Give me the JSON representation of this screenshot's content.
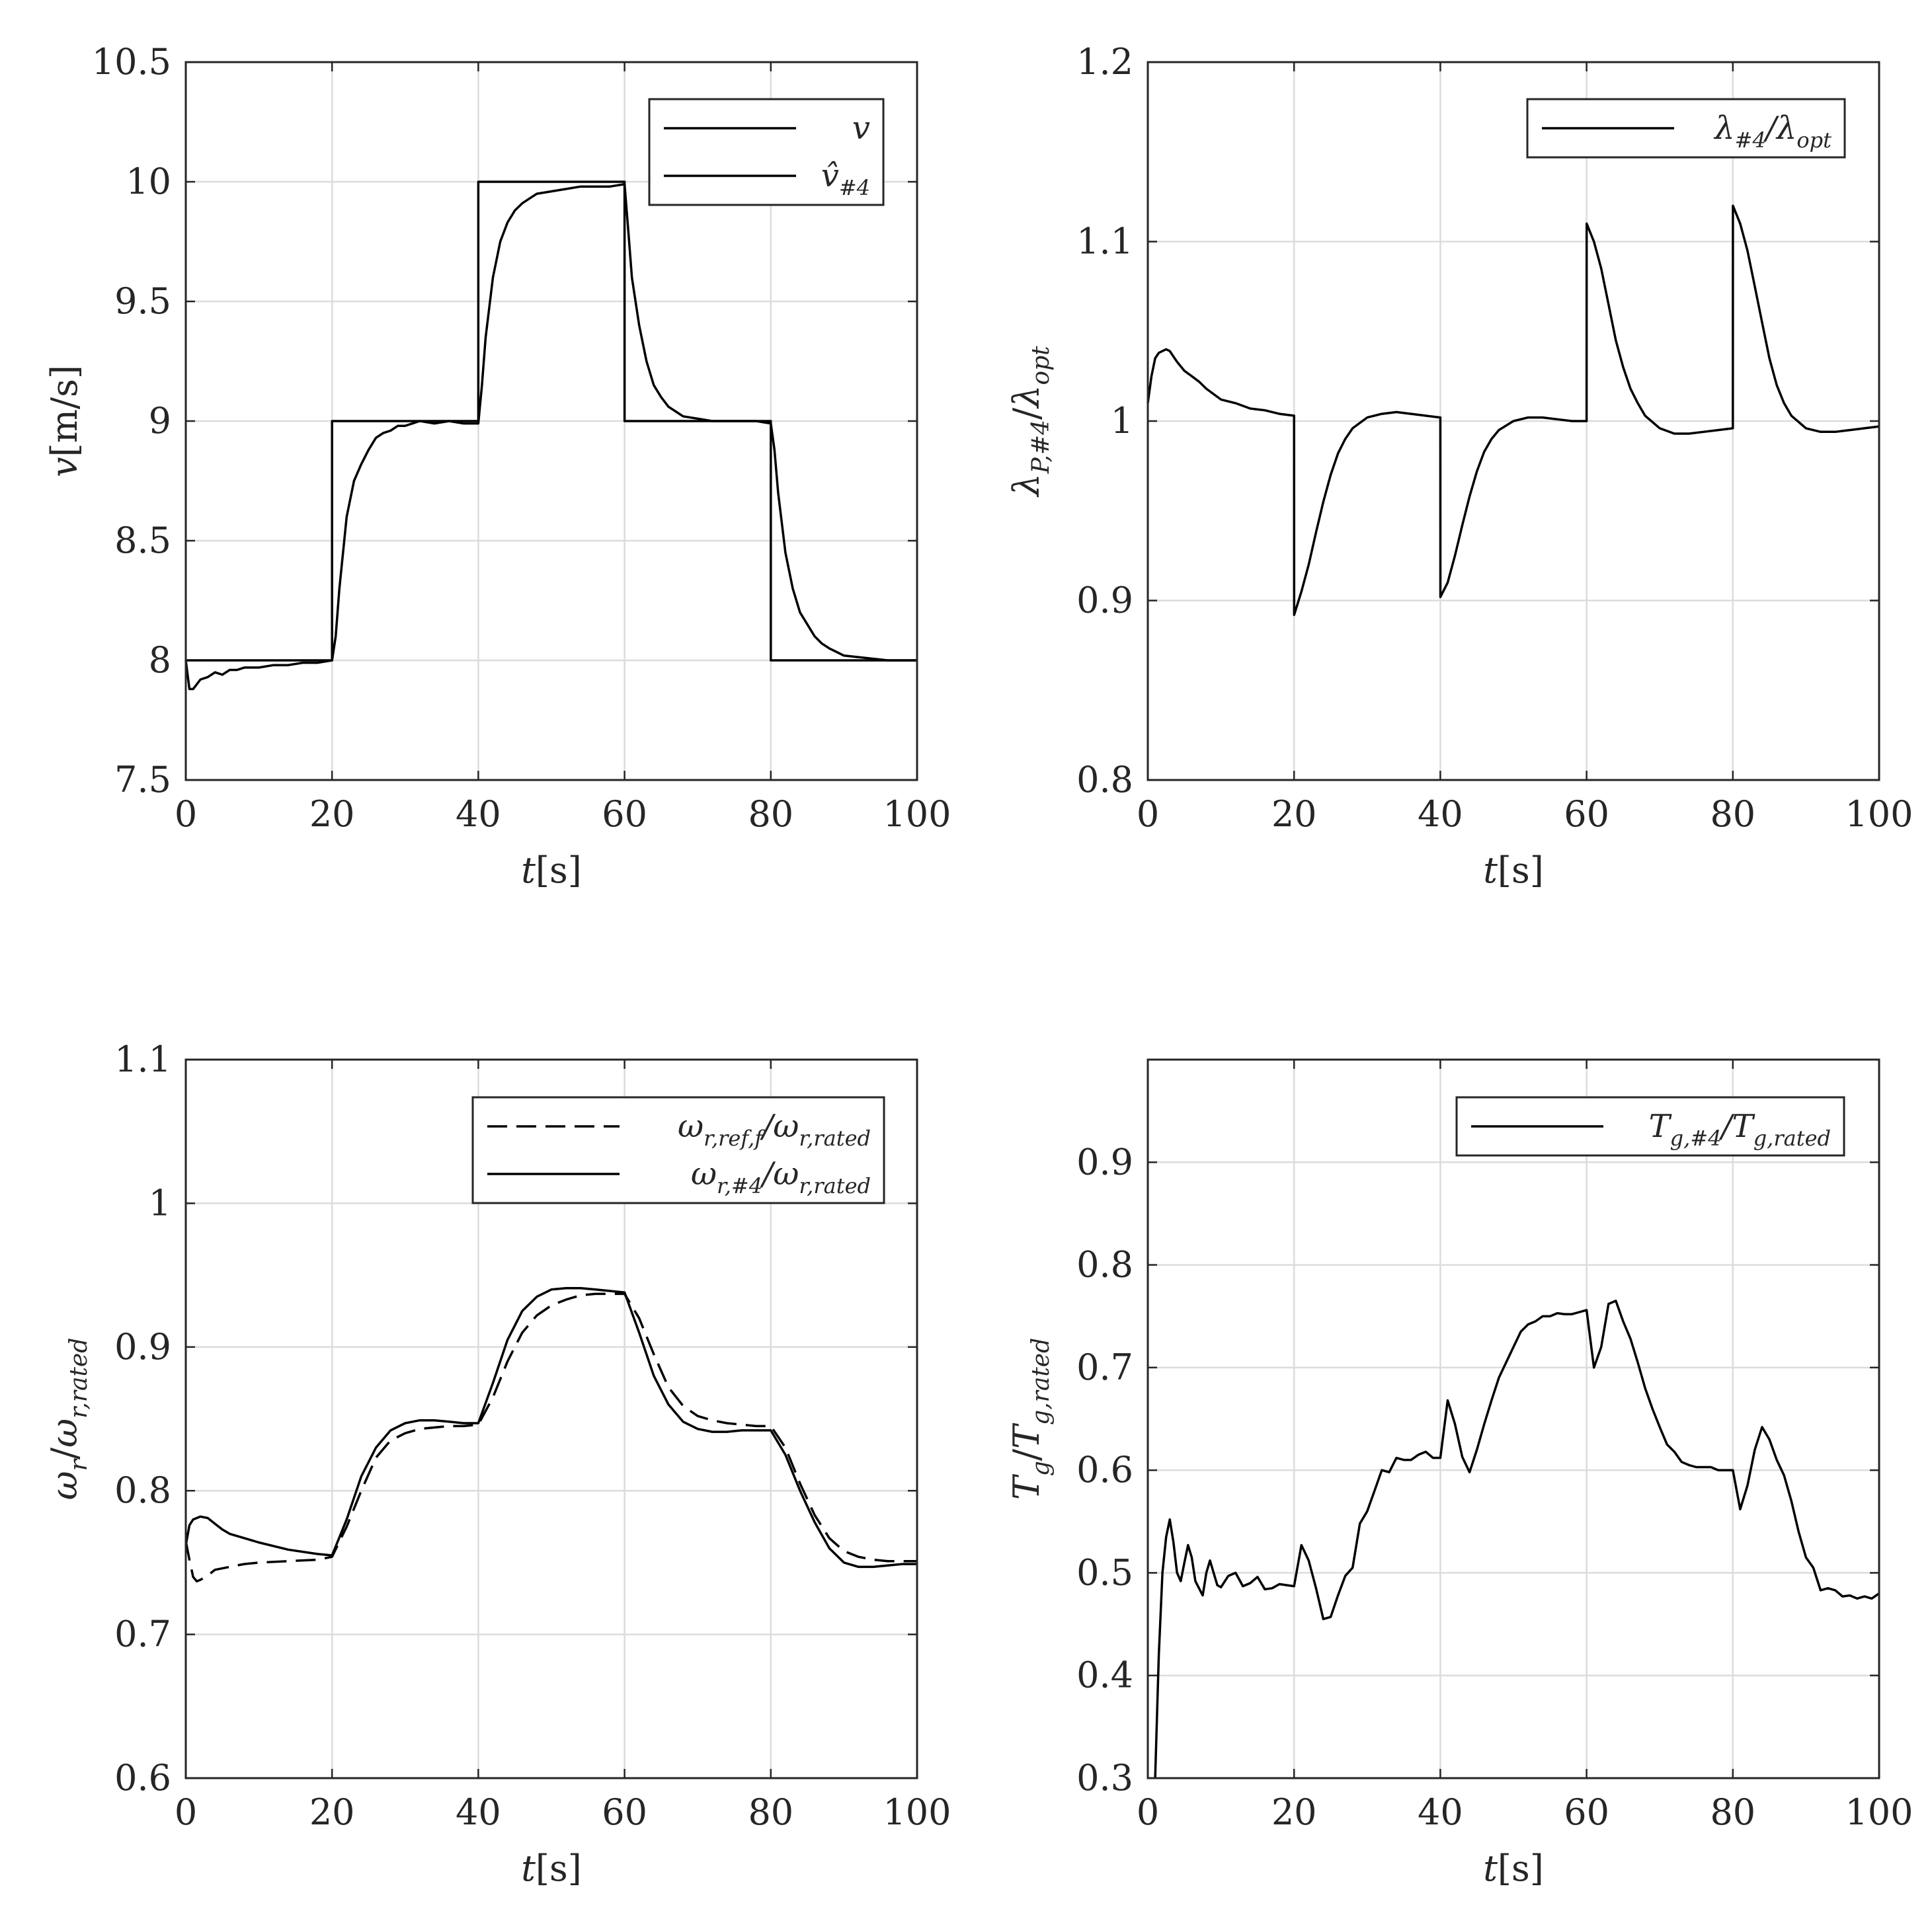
{
  "chart_data": [
    {
      "type": "line",
      "xlabel": "t[s]",
      "ylabel": "v[m/s]",
      "xlim": [
        0,
        100
      ],
      "ylim": [
        7.5,
        10.5
      ],
      "xticks": [
        "0",
        "20",
        "40",
        "60",
        "80",
        "100"
      ],
      "yticks": [
        "7.5",
        "8",
        "8.5",
        "9",
        "9.5",
        "10",
        "10.5"
      ],
      "grid": true,
      "legend_position": "top-right",
      "series": [
        {
          "name": "v",
          "style": "solid",
          "x": [
            0,
            20,
            20,
            40,
            40,
            60,
            60,
            80,
            80,
            100
          ],
          "y": [
            8,
            8,
            9,
            9,
            10,
            10,
            9,
            9,
            8,
            8
          ]
        },
        {
          "name": "v̂#4",
          "style": "solid",
          "x": [
            0,
            0.5,
            1,
            2,
            3,
            4,
            5,
            6,
            7,
            8,
            10,
            12,
            14,
            16,
            18,
            20,
            20.5,
            21,
            22,
            23,
            24,
            25,
            26,
            27,
            28,
            29,
            30,
            32,
            34,
            36,
            38,
            40,
            40.5,
            41,
            42,
            43,
            44,
            45,
            46,
            47,
            48,
            50,
            52,
            54,
            56,
            58,
            60,
            60.5,
            61,
            62,
            63,
            64,
            65,
            66,
            67,
            68,
            70,
            72,
            75,
            78,
            80,
            80.5,
            81,
            82,
            83,
            84,
            85,
            86,
            87,
            88,
            90,
            93,
            96,
            100
          ],
          "y": [
            8.0,
            7.88,
            7.88,
            7.92,
            7.93,
            7.95,
            7.94,
            7.96,
            7.96,
            7.97,
            7.97,
            7.98,
            7.98,
            7.99,
            7.99,
            8.0,
            8.1,
            8.3,
            8.6,
            8.75,
            8.82,
            8.88,
            8.93,
            8.95,
            8.96,
            8.98,
            8.98,
            9.0,
            8.99,
            9.0,
            8.99,
            8.99,
            9.15,
            9.35,
            9.6,
            9.75,
            9.83,
            9.88,
            9.91,
            9.93,
            9.95,
            9.96,
            9.97,
            9.98,
            9.98,
            9.98,
            9.99,
            9.8,
            9.6,
            9.4,
            9.25,
            9.15,
            9.1,
            9.06,
            9.04,
            9.02,
            9.01,
            9.0,
            9.0,
            9.0,
            8.99,
            8.88,
            8.7,
            8.45,
            8.3,
            8.2,
            8.15,
            8.1,
            8.07,
            8.05,
            8.02,
            8.01,
            8.0,
            8.0
          ]
        }
      ]
    },
    {
      "type": "line",
      "xlabel": "t[s]",
      "ylabel": "λP,#4/λopt",
      "xlim": [
        0,
        100
      ],
      "ylim": [
        0.8,
        1.2
      ],
      "xticks": [
        "0",
        "20",
        "40",
        "60",
        "80",
        "100"
      ],
      "yticks": [
        "0.8",
        "0.9",
        "1",
        "1.1",
        "1.2"
      ],
      "grid": true,
      "legend_position": "top-right",
      "series": [
        {
          "name": "λ#4/λopt",
          "style": "solid",
          "x": [
            0,
            0.5,
            1,
            1.5,
            2,
            2.5,
            3,
            4,
            5,
            6,
            7,
            8,
            10,
            12,
            14,
            16,
            18,
            20,
            20.01,
            21,
            22,
            23,
            24,
            25,
            26,
            27,
            28,
            30,
            32,
            34,
            36,
            38,
            40,
            40.01,
            41,
            42,
            43,
            44,
            45,
            46,
            47,
            48,
            50,
            52,
            54,
            56,
            58,
            60,
            60.01,
            61,
            62,
            63,
            64,
            65,
            66,
            67,
            68,
            70,
            72,
            74,
            76,
            78,
            80,
            80.01,
            81,
            82,
            83,
            84,
            85,
            86,
            87,
            88,
            90,
            92,
            94,
            96,
            98,
            100
          ],
          "y": [
            1.01,
            1.025,
            1.035,
            1.038,
            1.039,
            1.04,
            1.039,
            1.033,
            1.028,
            1.025,
            1.022,
            1.018,
            1.012,
            1.01,
            1.007,
            1.006,
            1.004,
            1.003,
            0.892,
            0.905,
            0.92,
            0.938,
            0.955,
            0.97,
            0.982,
            0.99,
            0.996,
            1.002,
            1.004,
            1.005,
            1.004,
            1.003,
            1.002,
            0.902,
            0.91,
            0.925,
            0.942,
            0.958,
            0.972,
            0.983,
            0.99,
            0.995,
            1.0,
            1.002,
            1.002,
            1.001,
            1.0,
            1.0,
            1.11,
            1.1,
            1.085,
            1.065,
            1.045,
            1.03,
            1.018,
            1.01,
            1.003,
            0.996,
            0.993,
            0.993,
            0.994,
            0.995,
            0.996,
            1.12,
            1.11,
            1.095,
            1.075,
            1.055,
            1.035,
            1.02,
            1.01,
            1.003,
            0.996,
            0.994,
            0.994,
            0.995,
            0.996,
            0.997
          ]
        }
      ]
    },
    {
      "type": "line",
      "xlabel": "t[s]",
      "ylabel": "ωr/ωr,rated",
      "xlim": [
        0,
        100
      ],
      "ylim": [
        0.6,
        1.1
      ],
      "xticks": [
        "0",
        "20",
        "40",
        "60",
        "80",
        "100"
      ],
      "yticks": [
        "0.6",
        "0.7",
        "0.8",
        "0.9",
        "1",
        "1.1"
      ],
      "grid": true,
      "legend_position": "top-right",
      "series": [
        {
          "name": "ωr,ref,f/ωr,rated",
          "style": "dashed",
          "x": [
            0,
            0.5,
            1,
            1.5,
            2,
            3,
            4,
            6,
            8,
            10,
            14,
            18,
            20,
            22,
            24,
            26,
            28,
            30,
            32,
            34,
            36,
            38,
            40,
            42,
            44,
            46,
            48,
            50,
            52,
            54,
            56,
            58,
            60,
            62,
            64,
            66,
            68,
            70,
            72,
            74,
            76,
            78,
            80,
            82,
            84,
            86,
            88,
            90,
            92,
            94,
            96,
            98,
            100
          ],
          "y": [
            0.765,
            0.752,
            0.74,
            0.737,
            0.738,
            0.741,
            0.745,
            0.747,
            0.749,
            0.75,
            0.751,
            0.752,
            0.754,
            0.775,
            0.8,
            0.823,
            0.835,
            0.84,
            0.843,
            0.844,
            0.845,
            0.845,
            0.846,
            0.865,
            0.89,
            0.91,
            0.922,
            0.929,
            0.933,
            0.936,
            0.937,
            0.937,
            0.937,
            0.92,
            0.895,
            0.872,
            0.859,
            0.852,
            0.849,
            0.847,
            0.846,
            0.845,
            0.845,
            0.83,
            0.805,
            0.783,
            0.767,
            0.758,
            0.754,
            0.752,
            0.751,
            0.751,
            0.751
          ]
        },
        {
          "name": "ωr,#4/ωr,rated",
          "style": "solid",
          "x": [
            0,
            0.5,
            1,
            2,
            3,
            4,
            5,
            6,
            8,
            10,
            14,
            18,
            20,
            22,
            24,
            26,
            28,
            30,
            32,
            34,
            36,
            38,
            40,
            42,
            44,
            46,
            48,
            50,
            52,
            54,
            56,
            58,
            60,
            62,
            64,
            66,
            68,
            70,
            72,
            74,
            76,
            78,
            80,
            82,
            84,
            86,
            88,
            90,
            92,
            94,
            96,
            98,
            100
          ],
          "y": [
            0.762,
            0.776,
            0.78,
            0.782,
            0.781,
            0.777,
            0.773,
            0.77,
            0.767,
            0.764,
            0.759,
            0.756,
            0.755,
            0.78,
            0.81,
            0.83,
            0.842,
            0.847,
            0.849,
            0.849,
            0.848,
            0.847,
            0.847,
            0.875,
            0.905,
            0.925,
            0.935,
            0.94,
            0.941,
            0.941,
            0.94,
            0.939,
            0.938,
            0.91,
            0.88,
            0.86,
            0.848,
            0.843,
            0.841,
            0.841,
            0.842,
            0.842,
            0.842,
            0.825,
            0.8,
            0.778,
            0.76,
            0.75,
            0.747,
            0.747,
            0.748,
            0.749,
            0.749
          ]
        }
      ]
    },
    {
      "type": "line",
      "xlabel": "t[s]",
      "ylabel": "Tg/Tg,rated",
      "xlim": [
        0,
        100
      ],
      "ylim": [
        0.3,
        1.0
      ],
      "xticks": [
        "0",
        "20",
        "40",
        "60",
        "80",
        "100"
      ],
      "yticks": [
        "0.3",
        "0.4",
        "0.5",
        "0.6",
        "0.7",
        "0.8",
        "0.9"
      ],
      "grid": true,
      "legend_position": "top-right",
      "series": [
        {
          "name": "Tg,#4/Tg,rated",
          "style": "solid",
          "x": [
            1,
            1.5,
            2,
            2.5,
            3,
            3.5,
            4,
            4.5,
            5,
            5.5,
            6,
            6.5,
            7,
            7.5,
            8,
            8.5,
            9,
            9.5,
            10,
            11,
            12,
            13,
            14,
            15,
            16,
            17,
            18,
            19,
            20,
            21,
            22,
            23,
            24,
            25,
            26,
            27,
            28,
            29,
            30,
            31,
            32,
            33,
            34,
            35,
            36,
            37,
            38,
            39,
            40,
            41,
            42,
            43,
            44,
            45,
            46,
            47,
            48,
            49,
            50,
            51,
            52,
            53,
            54,
            55,
            56,
            57,
            58,
            59,
            60,
            61,
            62,
            63,
            64,
            65,
            66,
            67,
            68,
            69,
            70,
            71,
            72,
            73,
            74,
            75,
            76,
            77,
            78,
            79,
            80,
            81,
            82,
            83,
            84,
            85,
            86,
            87,
            88,
            89,
            90,
            91,
            92,
            93,
            94,
            95,
            96,
            97,
            98,
            99,
            100
          ],
          "y": [
            0.3,
            0.42,
            0.5,
            0.535,
            0.552,
            0.53,
            0.5,
            0.492,
            0.51,
            0.527,
            0.515,
            0.492,
            0.485,
            0.478,
            0.5,
            0.512,
            0.5,
            0.488,
            0.486,
            0.497,
            0.5,
            0.487,
            0.49,
            0.496,
            0.484,
            0.485,
            0.489,
            0.488,
            0.487,
            0.527,
            0.512,
            0.485,
            0.455,
            0.457,
            0.478,
            0.497,
            0.505,
            0.548,
            0.56,
            0.58,
            0.6,
            0.598,
            0.612,
            0.61,
            0.61,
            0.615,
            0.618,
            0.612,
            0.612,
            0.668,
            0.645,
            0.613,
            0.598,
            0.62,
            0.645,
            0.668,
            0.69,
            0.705,
            0.72,
            0.735,
            0.742,
            0.745,
            0.75,
            0.75,
            0.753,
            0.752,
            0.752,
            0.754,
            0.756,
            0.7,
            0.72,
            0.762,
            0.765,
            0.745,
            0.728,
            0.705,
            0.68,
            0.66,
            0.642,
            0.625,
            0.618,
            0.608,
            0.605,
            0.603,
            0.603,
            0.603,
            0.6,
            0.6,
            0.6,
            0.562,
            0.585,
            0.62,
            0.642,
            0.63,
            0.61,
            0.595,
            0.57,
            0.54,
            0.515,
            0.505,
            0.483,
            0.485,
            0.483,
            0.477,
            0.478,
            0.475,
            0.477,
            0.475,
            0.48
          ]
        }
      ]
    }
  ]
}
